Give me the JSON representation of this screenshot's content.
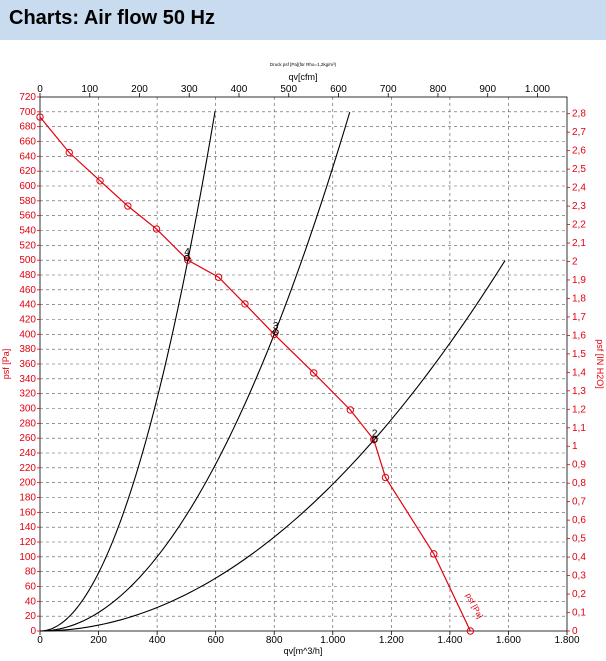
{
  "header": {
    "title": "Charts: Air flow 50 Hz"
  },
  "chart_data": {
    "type": "line",
    "title": "Druck psf [Pa](für Rho=1,2kg/m³)",
    "xlabel": "qv[m^3/h]",
    "x2label": "qv[cfm]",
    "ylabel": "psf [Pa]",
    "y2label": "psf [IN H2O]",
    "xlim": [
      0,
      1800
    ],
    "ylim": [
      0,
      720
    ],
    "x2lim": [
      0,
      1059.4
    ],
    "y2lim": [
      0,
      2.8903
    ],
    "xticks": [
      0,
      200,
      400,
      600,
      800,
      1000,
      1200,
      1400,
      1600,
      1800
    ],
    "xtick_labels": [
      "0",
      "200",
      "400",
      "600",
      "800",
      "1.000",
      "1.200",
      "1.400",
      "1.600",
      "1.800"
    ],
    "yticks": [
      0,
      20,
      40,
      60,
      80,
      100,
      120,
      140,
      160,
      180,
      200,
      220,
      240,
      260,
      280,
      300,
      320,
      340,
      360,
      380,
      400,
      420,
      440,
      460,
      480,
      500,
      520,
      540,
      560,
      580,
      600,
      620,
      640,
      660,
      680,
      700,
      720
    ],
    "ytick_labels": [
      "0",
      "20",
      "40",
      "60",
      "80",
      "100",
      "120",
      "140",
      "160",
      "180",
      "200",
      "220",
      "240",
      "260",
      "280",
      "300",
      "320",
      "340",
      "360",
      "380",
      "400",
      "420",
      "440",
      "460",
      "480",
      "500",
      "520",
      "540",
      "560",
      "580",
      "600",
      "620",
      "640",
      "660",
      "680",
      "700",
      "720"
    ],
    "x2ticks": [
      0,
      100,
      200,
      300,
      400,
      500,
      600,
      700,
      800,
      900,
      1000
    ],
    "x2tick_labels": [
      "0",
      "100",
      "200",
      "300",
      "400",
      "500",
      "600",
      "700",
      "800",
      "900",
      "1.000"
    ],
    "y2ticks": [
      0,
      0.1,
      0.2,
      0.3,
      0.4,
      0.5,
      0.6,
      0.7,
      0.8,
      0.9,
      1,
      1.1,
      1.2,
      1.3,
      1.4,
      1.5,
      1.6,
      1.7,
      1.8,
      1.9,
      2,
      2.1,
      2.2,
      2.3,
      2.4,
      2.5,
      2.6,
      2.7,
      2.8
    ],
    "y2tick_labels": [
      "0",
      "0,1",
      "0,2",
      "0,3",
      "0,4",
      "0,5",
      "0,6",
      "0,7",
      "0,8",
      "0,9",
      "1",
      "1,1",
      "1,2",
      "1,3",
      "1,4",
      "1,5",
      "1,6",
      "1,7",
      "1,8",
      "1,9",
      "2",
      "2,1",
      "2,2",
      "2,3",
      "2,4",
      "2,5",
      "2,6",
      "2,7",
      "2,8"
    ],
    "grid": true,
    "colors": {
      "fan_curve": "#e3000f",
      "system_curve": "#000000",
      "frame": "#000000"
    },
    "series": [
      {
        "name": "psf",
        "color": "#e3000f",
        "marker": "circle",
        "x": [
          0,
          100,
          205,
          300,
          398,
          505,
          610,
          700,
          800,
          935,
          1060,
          1140,
          1180,
          1345,
          1470
        ],
        "y": [
          693,
          645,
          607,
          573,
          542,
          500,
          477,
          441,
          400,
          348,
          298,
          258,
          207,
          104,
          0
        ],
        "marker_x": [
          0,
          100,
          205,
          300,
          398,
          505,
          610,
          700,
          800,
          935,
          1060,
          1140,
          1180,
          1345,
          1470
        ],
        "marker_y": [
          693,
          645,
          607,
          573,
          542,
          500,
          477,
          441,
          400,
          348,
          298,
          258,
          207,
          104,
          0
        ]
      },
      {
        "name": "4",
        "color": "#000000",
        "k": 0.00196,
        "xmax": 598
      },
      {
        "name": "3",
        "color": "#000000",
        "k": 0.000625,
        "xmax": 1058
      },
      {
        "name": "2",
        "color": "#000000",
        "k": 0.000198,
        "xmax": 1588
      }
    ],
    "operating_points": [
      {
        "label": "4",
        "x": 502,
        "y": 507
      },
      {
        "label": "3",
        "x": 805,
        "y": 407
      },
      {
        "label": "2",
        "x": 1143,
        "y": 262
      }
    ],
    "curve_label": "psf [Pa]"
  }
}
